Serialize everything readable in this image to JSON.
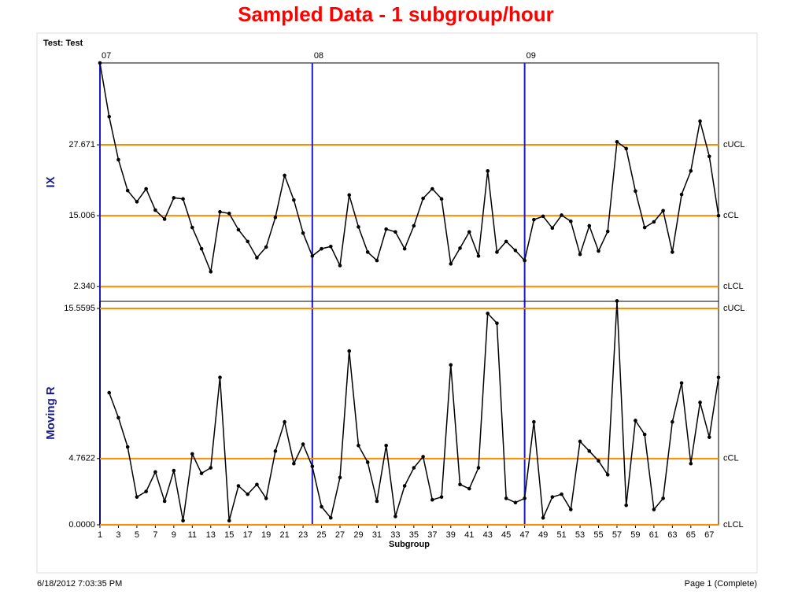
{
  "title": "Sampled Data - 1 subgroup/hour",
  "test_label": "Test: Test",
  "footer": {
    "left": "6/18/2012  7:03:35 PM",
    "right": "Page 1 (Complete)"
  },
  "chart_data": [
    {
      "type": "line",
      "y_label": "IX",
      "x": [
        1,
        2,
        3,
        4,
        5,
        6,
        7,
        8,
        9,
        10,
        11,
        12,
        13,
        14,
        15,
        16,
        17,
        18,
        19,
        20,
        21,
        22,
        23,
        24,
        25,
        26,
        27,
        28,
        29,
        30,
        31,
        32,
        33,
        34,
        35,
        36,
        37,
        38,
        39,
        40,
        41,
        42,
        43,
        44,
        45,
        46,
        47,
        48,
        49,
        50,
        51,
        52,
        53,
        54,
        55,
        56,
        57,
        58,
        59,
        60,
        61,
        62,
        63,
        64,
        65,
        66,
        67,
        68
      ],
      "series": [
        {
          "name": "IX",
          "color": "#000000",
          "values": [
            42.3,
            32.7,
            25.0,
            19.5,
            17.5,
            19.8,
            16.0,
            14.4,
            18.2,
            18.0,
            12.9,
            9.1,
            5.0,
            15.7,
            15.4,
            12.5,
            10.4,
            7.5,
            9.4,
            14.7,
            22.2,
            17.8,
            11.9,
            7.8,
            9.1,
            9.5,
            6.1,
            18.7,
            13.0,
            8.5,
            7.0,
            12.6,
            12.1,
            9.1,
            13.2,
            18.1,
            19.8,
            18.0,
            6.4,
            9.2,
            12.1,
            7.8,
            23.0,
            8.5,
            10.4,
            8.8,
            7.0,
            14.3,
            14.9,
            12.8,
            15.1,
            14.0,
            8.1,
            13.2,
            8.7,
            12.2,
            28.2,
            27.0,
            19.4,
            12.9,
            13.9,
            15.9,
            8.5,
            18.8,
            23.0,
            31.9,
            25.6,
            15.0
          ]
        }
      ],
      "limits": [
        {
          "name": "cUCL",
          "value": 27.671
        },
        {
          "name": "cCL",
          "value": 15.006
        },
        {
          "name": "cLCL",
          "value": 2.34
        }
      ],
      "limit_color": "#ff8c00",
      "phases": [
        {
          "label": "07",
          "x": 1
        },
        {
          "label": "08",
          "x": 24
        },
        {
          "label": "09",
          "x": 47
        }
      ],
      "phase_color": "#1c1cc8",
      "xlim": [
        1,
        68
      ],
      "ylim": [
        -0.3,
        42.3
      ],
      "yticks": [
        {
          "value": 2.34,
          "label": "2.340"
        },
        15.006,
        27.671
      ]
    },
    {
      "type": "line",
      "y_label": "Moving R",
      "x_label": "Subgroup",
      "x": [
        1,
        2,
        3,
        4,
        5,
        6,
        7,
        8,
        9,
        10,
        11,
        12,
        13,
        14,
        15,
        16,
        17,
        18,
        19,
        20,
        21,
        22,
        23,
        24,
        25,
        26,
        27,
        28,
        29,
        30,
        31,
        32,
        33,
        34,
        35,
        36,
        37,
        38,
        39,
        40,
        41,
        42,
        43,
        44,
        45,
        46,
        47,
        48,
        49,
        50,
        51,
        52,
        53,
        54,
        55,
        56,
        57,
        58,
        59,
        60,
        61,
        62,
        63,
        64,
        65,
        66,
        67,
        68
      ],
      "series": [
        {
          "name": "Moving R",
          "color": "#000000",
          "values": [
            null,
            9.5,
            7.7,
            5.6,
            2.0,
            2.4,
            3.8,
            1.7,
            3.9,
            0.3,
            5.1,
            3.7,
            4.1,
            10.6,
            0.3,
            2.8,
            2.2,
            2.9,
            1.9,
            5.3,
            7.4,
            4.4,
            5.8,
            4.2,
            1.3,
            0.5,
            3.4,
            12.5,
            5.7,
            4.5,
            1.7,
            5.7,
            0.6,
            2.8,
            4.1,
            4.9,
            1.8,
            2.0,
            11.5,
            2.9,
            2.6,
            4.1,
            15.2,
            14.5,
            1.9,
            1.6,
            1.9,
            7.4,
            0.5,
            2.0,
            2.2,
            1.1,
            6.0,
            5.3,
            4.6,
            3.6,
            16.1,
            1.4,
            7.5,
            6.5,
            1.1,
            1.9,
            7.4,
            10.2,
            4.4,
            8.8,
            6.3,
            10.6
          ]
        }
      ],
      "limits": [
        {
          "name": "cUCL",
          "value": 15.5595
        },
        {
          "name": "cCL",
          "value": 4.7622
        },
        {
          "name": "cLCL",
          "value": 0
        }
      ],
      "limit_color": "#ff8c00",
      "xlim": [
        1,
        68
      ],
      "xticks": [
        1,
        3,
        5,
        7,
        9,
        11,
        13,
        15,
        17,
        19,
        21,
        23,
        25,
        27,
        29,
        31,
        33,
        35,
        37,
        39,
        41,
        43,
        45,
        47,
        49,
        51,
        53,
        55,
        57,
        59,
        61,
        63,
        65,
        67
      ],
      "ylim": [
        0,
        16.07
      ],
      "yticks": [
        {
          "value": 0,
          "label": "0.0000"
        },
        4.7622,
        15.5595
      ]
    }
  ]
}
